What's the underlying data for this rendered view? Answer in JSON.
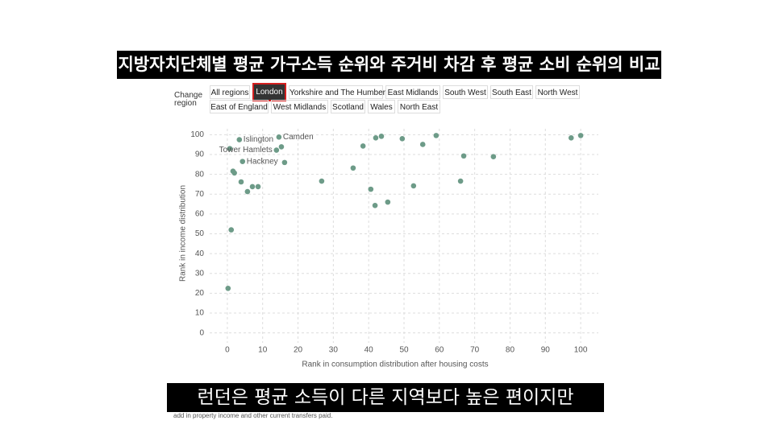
{
  "caption_top": "지방자치단체별 평균 가구소득 순위와 주거비 차감 후 평균 소비 순위의 비교",
  "controls": {
    "label": "Change region",
    "buttons": [
      "All regions",
      "London",
      "Yorkshire and The Humber",
      "East Midlands",
      "South West",
      "South East",
      "North West",
      "East of England",
      "West Midlands",
      "Scotland",
      "Wales",
      "North East"
    ],
    "active": "London"
  },
  "chart_data": {
    "type": "scatter",
    "x_label": "Rank in consumption distribution after housing costs",
    "y_label": "Rank in income distribution",
    "color": "#6d9b88",
    "x": [
      3.4,
      14.6,
      0.7,
      15.3,
      13.9,
      4.3,
      16.2,
      1.6,
      2.0,
      3.9,
      5.7,
      7.1,
      8.7,
      1.1,
      0.2,
      26.7,
      35.6,
      38.4,
      42.0,
      43.6,
      40.6,
      41.8,
      45.4,
      49.5,
      52.7,
      55.3,
      59.1,
      66.0,
      66.9,
      75.3,
      97.3,
      100.0
    ],
    "values": [
      97.5,
      98.8,
      93.0,
      93.9,
      92.2,
      86.5,
      86.0,
      81.6,
      80.7,
      76.2,
      71.3,
      73.8,
      73.8,
      52.0,
      22.5,
      76.6,
      83.2,
      94.3,
      98.4,
      99.2,
      72.5,
      64.3,
      66.0,
      98.0,
      74.2,
      95.1,
      99.6,
      76.6,
      89.3,
      88.9,
      98.4,
      99.6
    ],
    "point_labels": [
      "Islington",
      "Camden",
      null,
      null,
      "Tower Hamlets",
      "Hackney",
      null,
      null,
      null,
      null,
      null,
      null,
      null,
      null,
      null,
      null,
      null,
      null,
      null,
      null,
      null,
      null,
      null,
      null,
      null,
      null,
      null,
      null,
      null,
      null,
      null,
      null
    ],
    "xlim": [
      -5,
      105
    ],
    "ylim": [
      -5,
      103
    ],
    "xticks": [
      0,
      10,
      20,
      30,
      40,
      50,
      60,
      70,
      80,
      90,
      100
    ],
    "yticks": [
      0,
      10,
      20,
      30,
      40,
      50,
      60,
      70,
      80,
      90,
      100
    ],
    "grid": true
  },
  "subtitle": "런던은 평균 소득이 다른 지역보다 높은 편이지만",
  "footnote": "add in property income and other current transfers paid."
}
